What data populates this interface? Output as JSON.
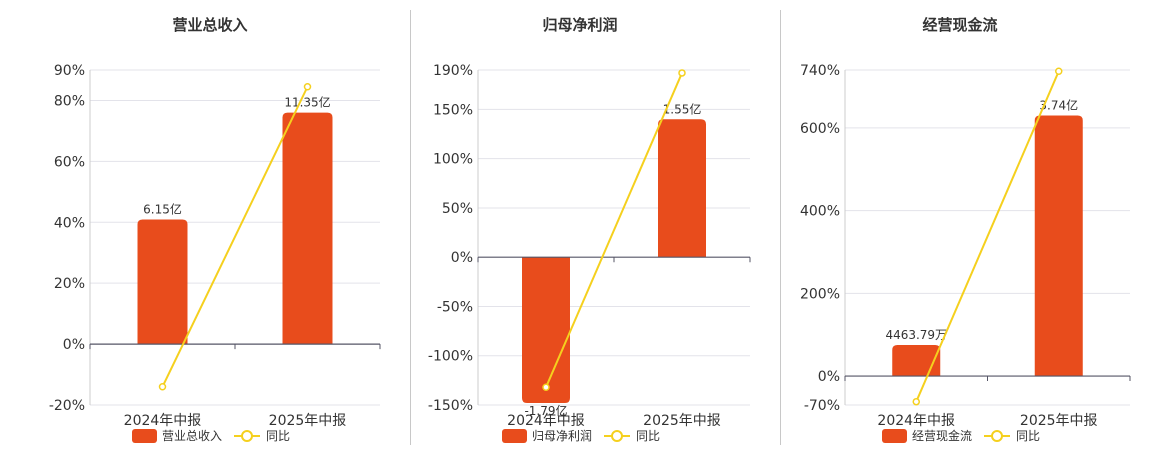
{
  "chart_data": [
    {
      "type": "bar",
      "title": "营业总收入",
      "categories": [
        "2024年中报",
        "2025年中报"
      ],
      "bar_labels": [
        "6.15亿",
        "11.35亿"
      ],
      "series": [
        {
          "name": "营业总收入",
          "kind": "bar",
          "values": [
            40.9,
            76.0
          ],
          "color": "#e84c1c"
        },
        {
          "name": "同比",
          "kind": "line",
          "values": [
            -14.0,
            84.5
          ],
          "color": "#f5d01e"
        }
      ],
      "yticks": [
        "90%",
        "80%",
        "60%",
        "40%",
        "20%",
        "0%",
        "-20%"
      ],
      "ytick_values": [
        90,
        80,
        60,
        40,
        20,
        0,
        -20
      ],
      "ylim": [
        -20,
        90
      ],
      "grid": true,
      "legend": "bottom"
    },
    {
      "type": "bar",
      "title": "归母净利润",
      "categories": [
        "2024年中报",
        "2025年中报"
      ],
      "bar_labels": [
        "-1.79亿",
        "1.55亿"
      ],
      "series": [
        {
          "name": "归母净利润",
          "kind": "bar",
          "values": [
            -148.0,
            140.0
          ],
          "color": "#e84c1c"
        },
        {
          "name": "同比",
          "kind": "line",
          "values": [
            -132.0,
            187.0
          ],
          "color": "#f5d01e"
        }
      ],
      "yticks": [
        "190%",
        "150%",
        "100%",
        "50%",
        "0%",
        "-50%",
        "-100%",
        "-150%"
      ],
      "ytick_values": [
        190,
        150,
        100,
        50,
        0,
        -50,
        -100,
        -150
      ],
      "ylim": [
        -150,
        190
      ],
      "grid": true,
      "legend": "bottom"
    },
    {
      "type": "bar",
      "title": "经营现金流",
      "categories": [
        "2024年中报",
        "2025年中报"
      ],
      "bar_labels": [
        "4463.79万",
        "3.74亿"
      ],
      "series": [
        {
          "name": "经营现金流",
          "kind": "bar",
          "values": [
            75.0,
            630.0
          ],
          "color": "#e84c1c"
        },
        {
          "name": "同比",
          "kind": "line",
          "values": [
            -62.0,
            737.0
          ],
          "color": "#f5d01e"
        }
      ],
      "yticks": [
        "740%",
        "600%",
        "400%",
        "200%",
        "0%",
        "-70%"
      ],
      "ytick_values": [
        740,
        600,
        400,
        200,
        0,
        -70
      ],
      "ylim": [
        -70,
        740
      ],
      "grid": true,
      "legend": "bottom"
    }
  ]
}
